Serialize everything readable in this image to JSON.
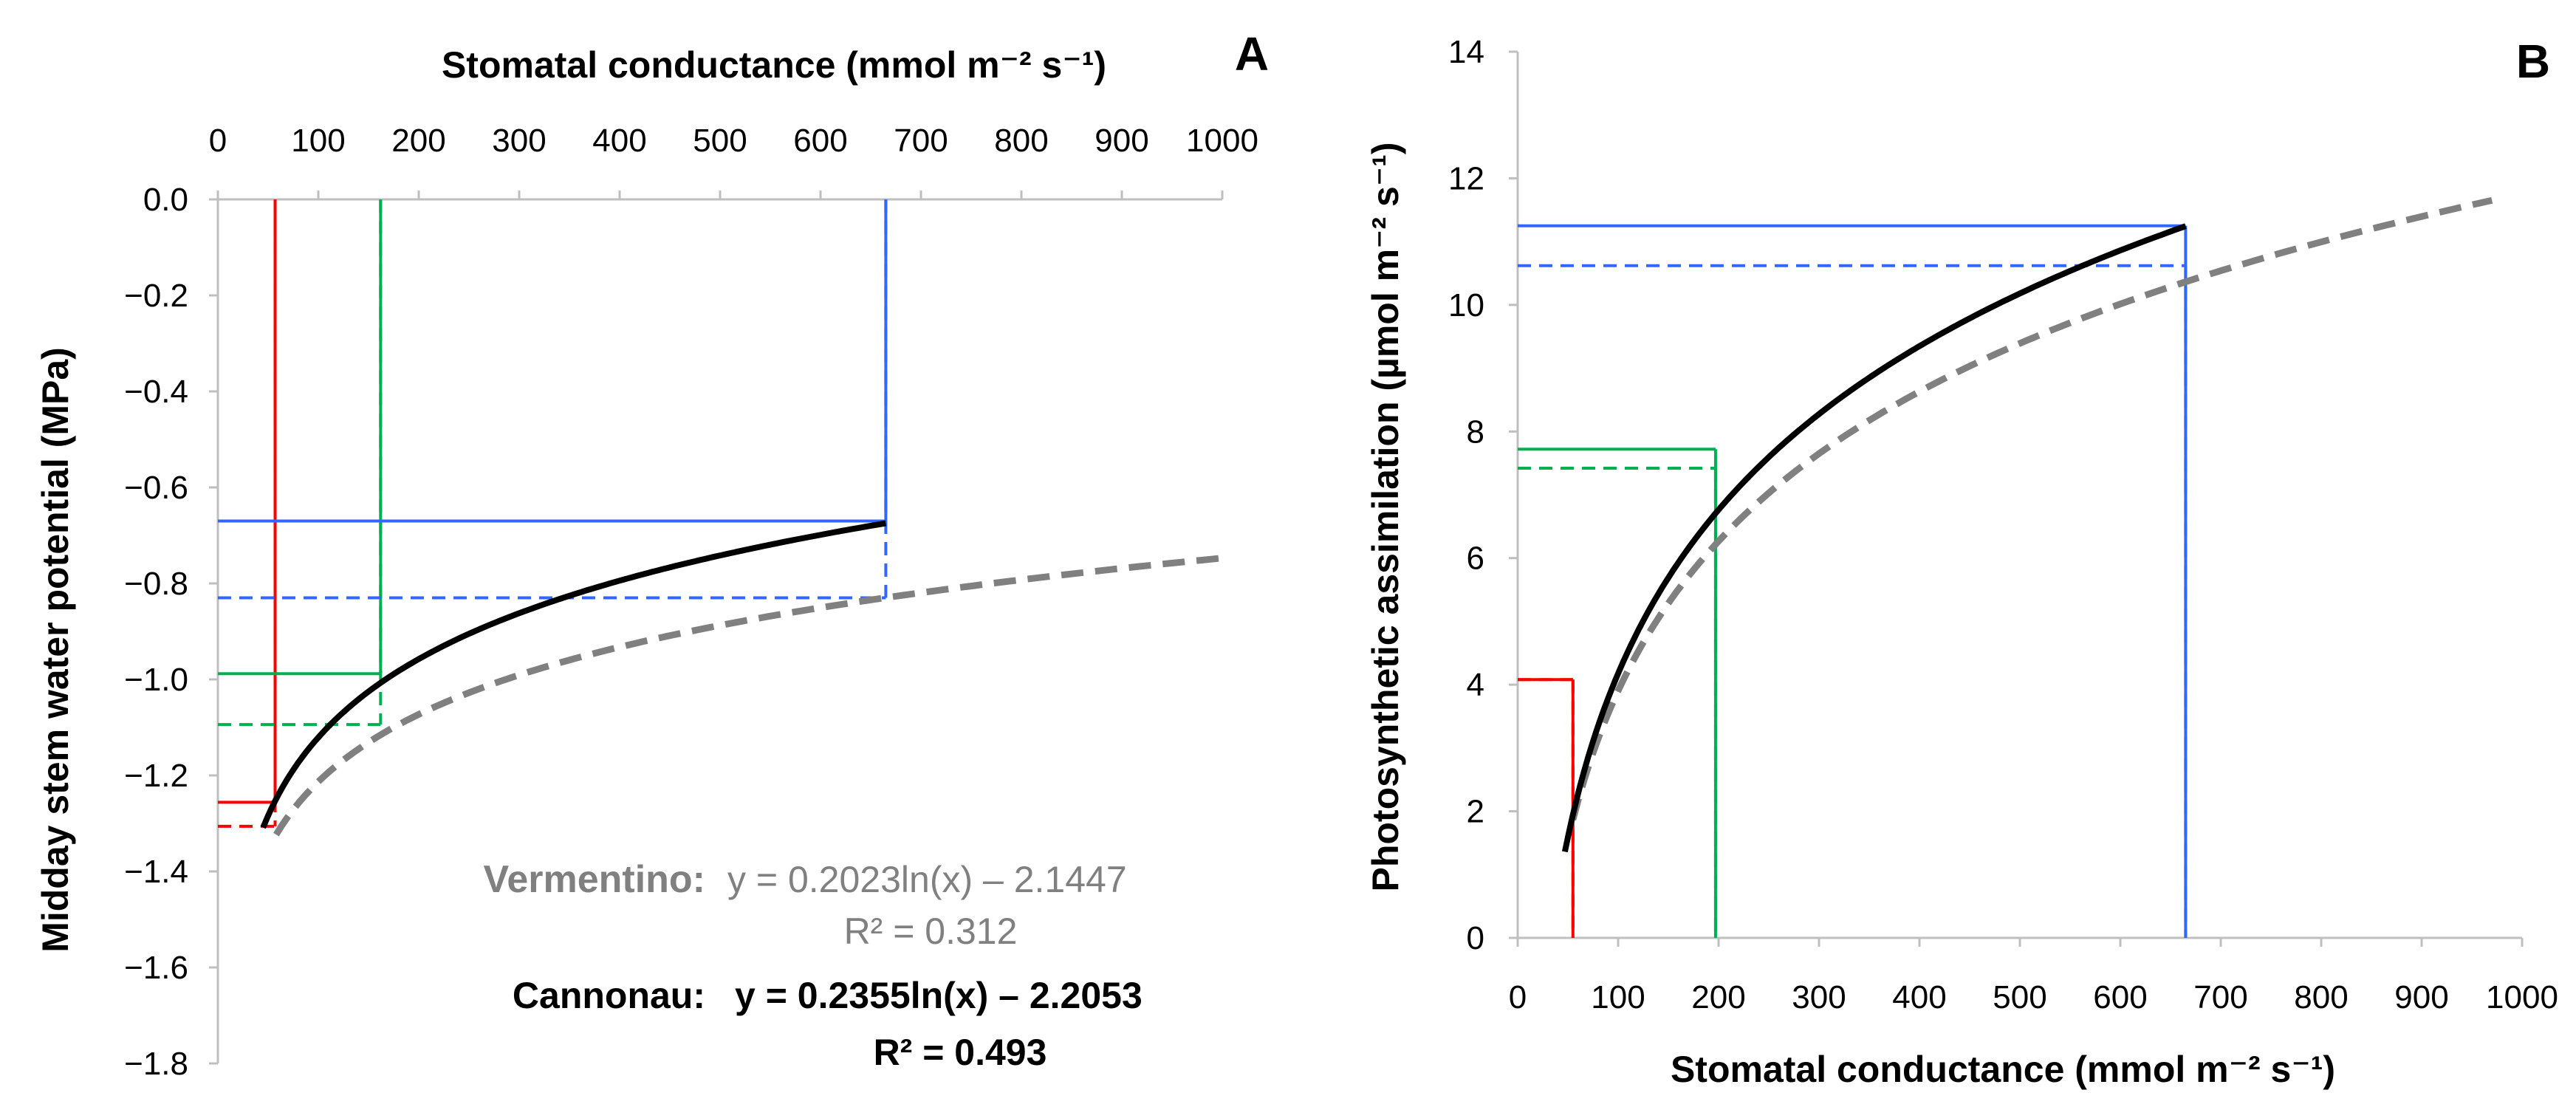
{
  "chart_data": [
    {
      "panel": "A",
      "type": "line",
      "xlabel": "Stomatal conductance (mmol m⁻² s⁻¹)",
      "ylabel": "Midday stem water potential (MPa)",
      "x_axis_position": "top",
      "xlim": [
        0,
        1000
      ],
      "ylim": [
        -1.8,
        0.0
      ],
      "xticks": [
        0,
        100,
        200,
        300,
        400,
        500,
        600,
        700,
        800,
        900,
        1000
      ],
      "yticks": [
        "0.0",
        "-0.2",
        "-0.4",
        "-0.6",
        "-0.8",
        "-1.0",
        "-1.2",
        "-1.4",
        "-1.6",
        "-1.8"
      ],
      "yticks_values": [
        0.0,
        -0.2,
        -0.4,
        -0.6,
        -0.8,
        -1.0,
        -1.2,
        -1.4,
        -1.6,
        -1.8
      ],
      "series": [
        {
          "name": "Cannonau",
          "style": "solid",
          "color": "#000000",
          "a": 0.2355,
          "b": -2.2053,
          "x_range": [
            45,
            665
          ]
        },
        {
          "name": "Vermentino",
          "style": "dashed",
          "color": "#808080",
          "a": 0.2023,
          "b": -2.1447,
          "x_range": [
            58,
            1000
          ]
        }
      ],
      "reference_lines": [
        {
          "color": "#ff0000",
          "style": "solid",
          "x": 57,
          "y": -1.256
        },
        {
          "color": "#ff0000",
          "style": "dashed",
          "x": 57,
          "y": -1.306
        },
        {
          "color": "#00b050",
          "style": "solid",
          "x": 162,
          "y": -0.988
        },
        {
          "color": "#00b050",
          "style": "dashed",
          "x": 162,
          "y": -1.094
        },
        {
          "color": "#3366ff",
          "style": "solid",
          "x": 665,
          "y": -0.67
        },
        {
          "color": "#3366ff",
          "style": "dashed",
          "x": 665,
          "y": -0.83
        }
      ],
      "annotations": {
        "vermentino_label": "Vermentino:",
        "vermentino_eq": "y = 0.2023ln(x) – 2.1447",
        "vermentino_r2": "R² = 0.312",
        "cannonau_label": "Cannonau:",
        "cannonau_eq": "y = 0.2355ln(x) – 2.2053",
        "cannonau_r2": "R² = 0.493"
      }
    },
    {
      "panel": "B",
      "type": "line",
      "xlabel": "Stomatal conductance (mmol m⁻² s⁻¹)",
      "ylabel": "Photosynthetic assimilation (µmol m⁻² s⁻¹)",
      "x_axis_position": "bottom",
      "xlim": [
        0,
        1000
      ],
      "ylim": [
        0,
        14
      ],
      "xticks": [
        0,
        100,
        200,
        300,
        400,
        500,
        600,
        700,
        800,
        900,
        1000
      ],
      "yticks": [
        0,
        2,
        4,
        6,
        8,
        10,
        12,
        14
      ],
      "series": [
        {
          "name": "Cannonau",
          "style": "solid",
          "color": "#000000",
          "a": 3.73,
          "b": -13.0,
          "x_range": [
            47,
            665
          ]
        },
        {
          "name": "Vermentino",
          "style": "dashed",
          "color": "#808080",
          "a": 3.41,
          "b": -11.8,
          "x_range": [
            55,
            970
          ]
        }
      ],
      "reference_lines": [
        {
          "color": "#ff0000",
          "style": "solid",
          "x": 55,
          "y": 4.08
        },
        {
          "color": "#ff0000",
          "style": "dashed",
          "x": 55,
          "y": 4.08
        },
        {
          "color": "#00b050",
          "style": "solid",
          "x": 197,
          "y": 7.72
        },
        {
          "color": "#00b050",
          "style": "dashed",
          "x": 197,
          "y": 7.42
        },
        {
          "color": "#3366ff",
          "style": "solid",
          "x": 665,
          "y": 11.25
        },
        {
          "color": "#3366ff",
          "style": "dashed",
          "x": 665,
          "y": 10.62
        }
      ]
    }
  ]
}
